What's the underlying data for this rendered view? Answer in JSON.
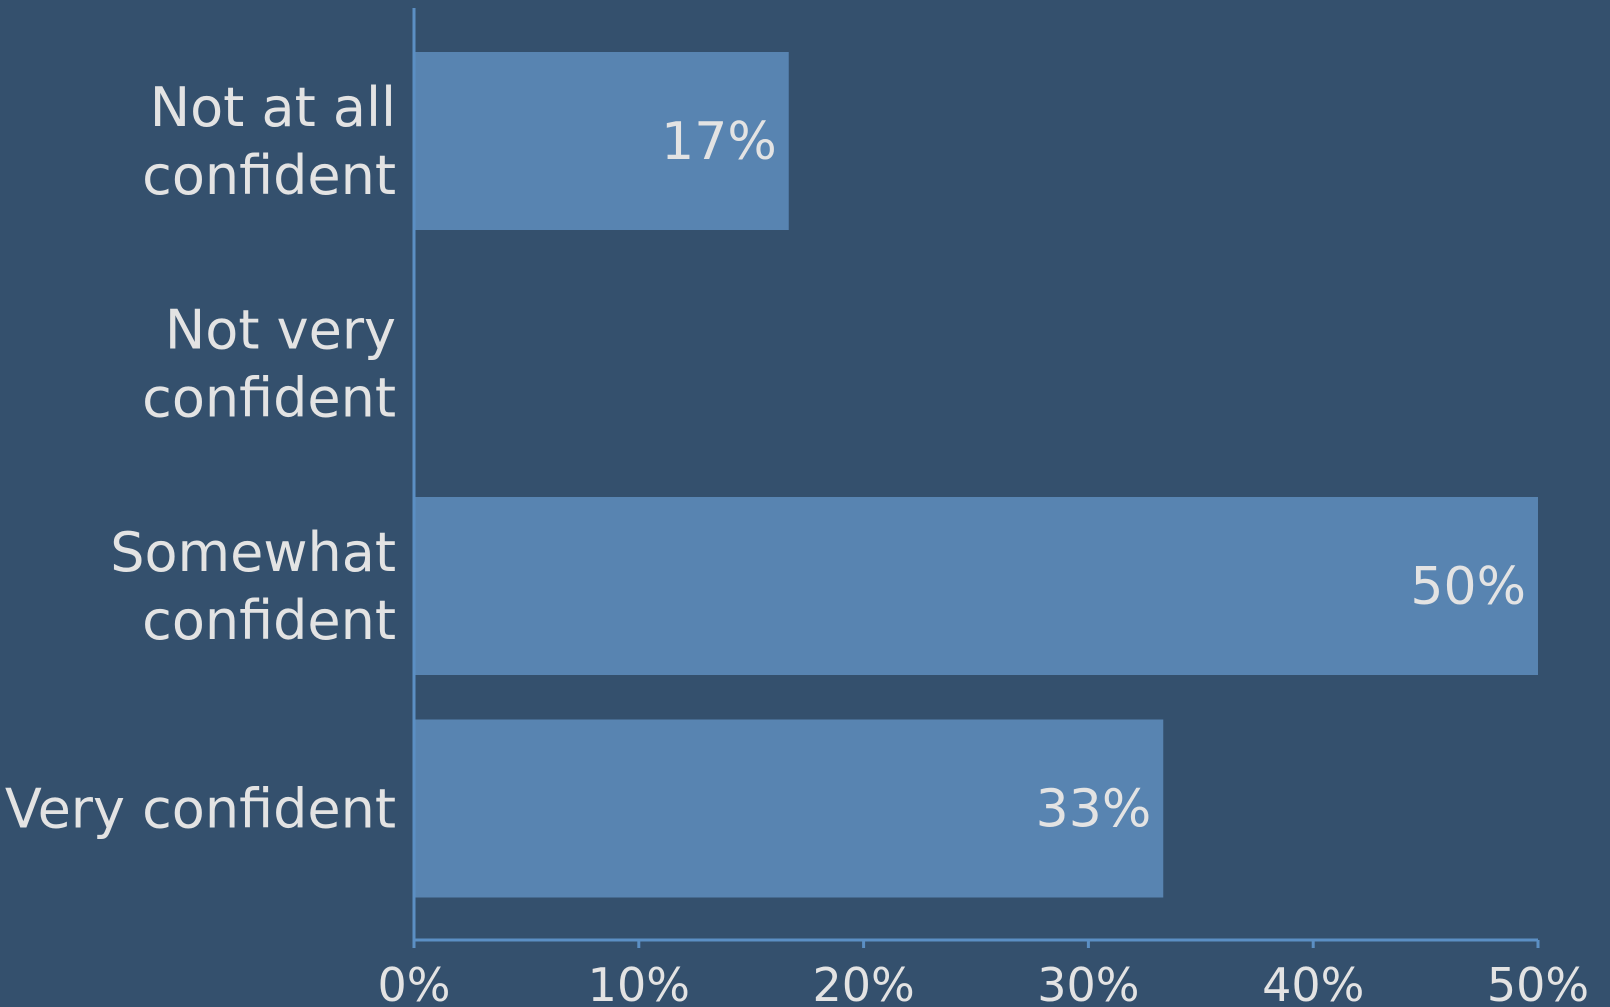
{
  "chart_data": {
    "type": "bar",
    "orientation": "horizontal",
    "categories": [
      [
        "Not at all",
        "confident"
      ],
      [
        "Not very",
        "confident"
      ],
      [
        "Somewhat",
        "confident"
      ],
      [
        "Very confident"
      ]
    ],
    "values": [
      0.1667,
      0,
      0.5,
      0.3333
    ],
    "value_labels": [
      "17%",
      "",
      "50%",
      "33%"
    ],
    "xlim": [
      0,
      0.5
    ],
    "x_ticks": [
      0,
      0.1,
      0.2,
      0.3,
      0.4,
      0.5
    ],
    "x_tick_labels": [
      "0%",
      "10%",
      "20%",
      "30%",
      "40%",
      "50%"
    ],
    "title": "",
    "xlabel": "",
    "ylabel": "",
    "grid": false,
    "colors": {
      "background": "#34506d",
      "bar": "#5884b1",
      "axis": "#5b8fc4",
      "text": "#e3e3e3"
    }
  }
}
